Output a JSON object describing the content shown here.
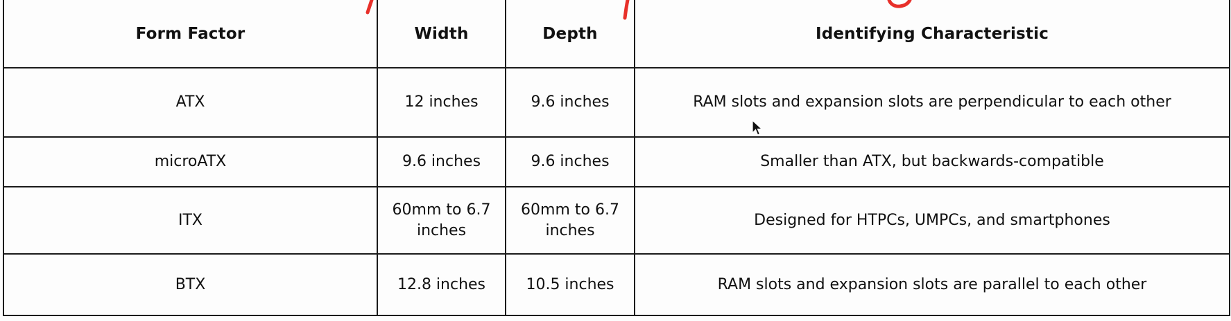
{
  "table": {
    "headers": [
      "Form Factor",
      "Width",
      "Depth",
      "Identifying Characteristic"
    ],
    "rows": [
      [
        "ATX",
        "12 inches",
        "9.6 inches",
        "RAM slots and expansion slots are perpendicular to each other"
      ],
      [
        "microATX",
        "9.6 inches",
        "9.6 inches",
        "Smaller than ATX, but backwards-compatible"
      ],
      [
        "ITX",
        "60mm to 6.7 inches",
        "60mm to 6.7 inches",
        "Designed for HTPCs, UMPCs, and smartphones"
      ],
      [
        "BTX",
        "12.8 inches",
        "10.5 inches",
        "RAM slots and expansion slots are parallel to each other"
      ]
    ]
  },
  "colors": {
    "annotation_ink": "#e8302a",
    "border": "#1a1a1a"
  },
  "icons": {
    "cursor": "mouse-pointer-icon"
  }
}
